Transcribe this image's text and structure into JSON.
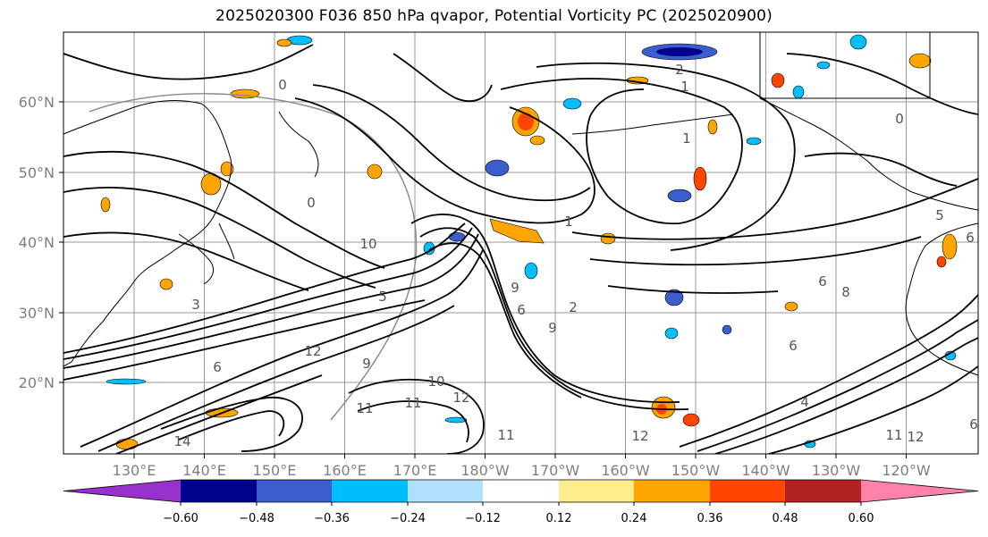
{
  "map": {
    "title": "2025020300 F036 850 hPa qvapor, Potential Vorticity PC (2025020900)",
    "lat_labels": [
      "60°N",
      "50°N",
      "40°N",
      "30°N",
      "20°N"
    ],
    "lon_labels": [
      "130°E",
      "140°E",
      "150°E",
      "160°E",
      "170°E",
      "180°W",
      "170°W",
      "160°W",
      "150°W",
      "140°W",
      "130°W",
      "120°W"
    ],
    "contour_labels": [
      "0",
      "1",
      "2",
      "0",
      "1",
      "0",
      "1",
      "5",
      "6",
      "6",
      "3",
      "5",
      "10",
      "6",
      "9",
      "12",
      "9",
      "10",
      "11",
      "11",
      "12",
      "14",
      "11",
      "12",
      "2",
      "4",
      "6",
      "8",
      "6",
      "11",
      "12",
      "6",
      "9"
    ]
  },
  "colorbar": {
    "tick_labels": [
      "−0.60",
      "−0.48",
      "−0.36",
      "−0.24",
      "−0.12",
      "0.12",
      "0.24",
      "0.36",
      "0.48",
      "0.60"
    ],
    "colors": [
      "#9932cc",
      "#00008b",
      "#3a5fcd",
      "#00bfff",
      "#b0e2ff",
      "#ffffff",
      "#ffec8b",
      "#ffa500",
      "#ff4500",
      "#b22222",
      "#ff82ab"
    ]
  }
}
